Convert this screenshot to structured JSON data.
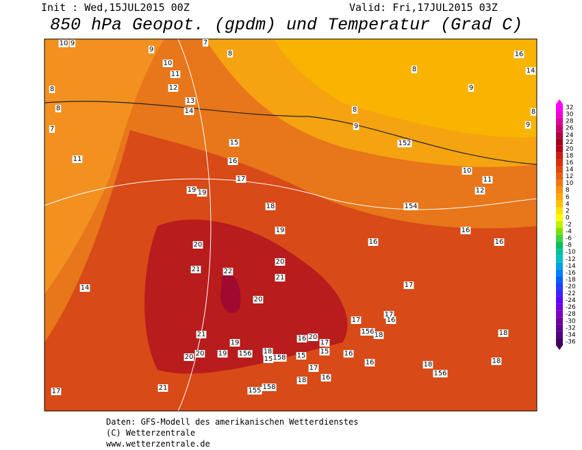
{
  "header": {
    "init": "Init : Wed,15JUL2015 00Z",
    "valid": "Valid: Fri,17JUL2015 03Z",
    "title": "850 hPa Geopot. (gpdm) und Temperatur (Grad C)"
  },
  "map": {
    "labels": [
      "10",
      "9",
      "9",
      "8",
      "10",
      "11",
      "12",
      "13",
      "14",
      "8",
      "8",
      "7",
      "11",
      "15",
      "16",
      "17",
      "19",
      "19",
      "18",
      "19",
      "20",
      "21",
      "22",
      "20",
      "21",
      "20",
      "21",
      "19",
      "20",
      "19",
      "156",
      "20",
      "21",
      "17",
      "14",
      "8",
      "9",
      "8",
      "9",
      "152",
      "10",
      "11",
      "12",
      "154",
      "16",
      "16",
      "16",
      "17",
      "17",
      "16",
      "17",
      "156",
      "18",
      "18",
      "18",
      "18",
      "156",
      "16",
      "16",
      "16",
      "20",
      "17",
      "15",
      "15",
      "158",
      "15",
      "18",
      "17",
      "16",
      "18",
      "158",
      "155",
      "9",
      "8",
      "16",
      "14",
      "7"
    ]
  },
  "colorbar": {
    "ticks": [
      32,
      30,
      28,
      26,
      24,
      22,
      20,
      18,
      16,
      14,
      12,
      10,
      8,
      6,
      4,
      2,
      0,
      -2,
      -4,
      -6,
      -8,
      -10,
      -12,
      -14,
      -16,
      -18,
      -20,
      -22,
      -24,
      -26,
      -28,
      -30,
      -32,
      -34,
      -36
    ],
    "colors": [
      "#ff00ff",
      "#f000d0",
      "#e000a0",
      "#c80070",
      "#b00040",
      "#a00020",
      "#b80018",
      "#c82010",
      "#d83010",
      "#e04810",
      "#e86010",
      "#f07810",
      "#f89010",
      "#ffa800",
      "#ffc000",
      "#ffe000",
      "#ffff00",
      "#c0f000",
      "#80e000",
      "#40d040",
      "#00c060",
      "#00c0a0",
      "#00c0c0",
      "#00a0e0",
      "#0080ff",
      "#0060ff",
      "#2040ff",
      "#4020ff",
      "#6000ff",
      "#7000e0",
      "#8000c0",
      "#7000a0",
      "#600090",
      "#500080",
      "#400060"
    ]
  },
  "footer": {
    "line1": "Daten: GFS-Modell des amerikanischen Wetterdienstes",
    "line2": "(C) Wetterzentrale",
    "line3": "www.wetterzentrale.de"
  }
}
